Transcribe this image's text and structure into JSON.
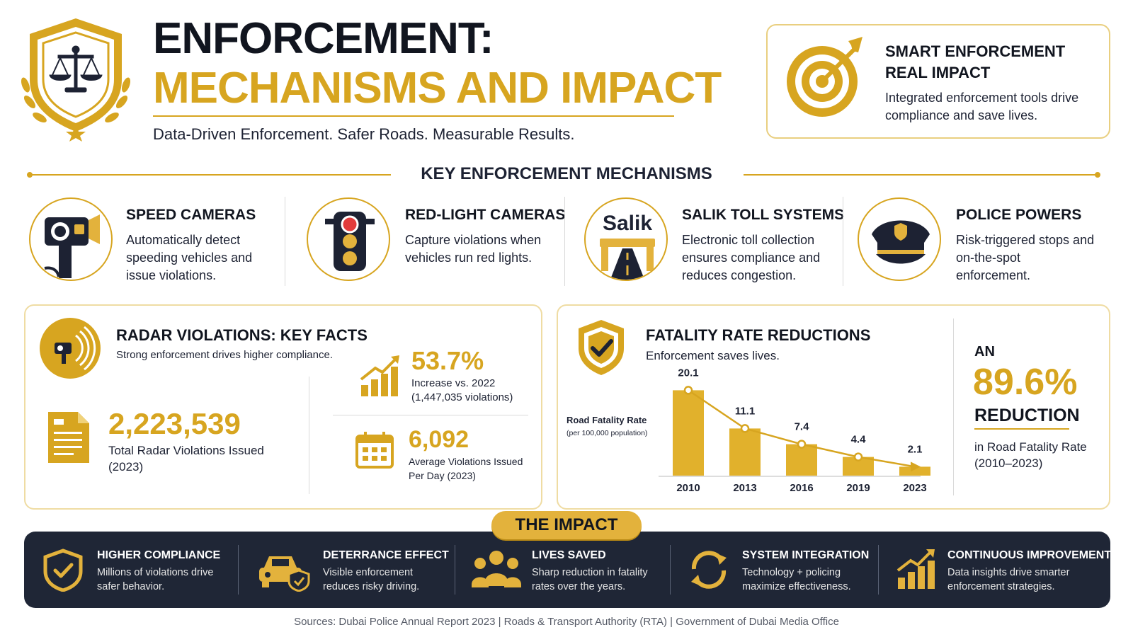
{
  "header": {
    "title_line1": "ENFORCEMENT:",
    "title_line2": "MECHANISMS AND IMPACT",
    "subtitle": "Data-Driven Enforcement. Safer Roads. Measurable Results.",
    "logo_icon": "scales-shield-icon"
  },
  "smart_box": {
    "title_line1": "SMART ENFORCEMENT",
    "title_line2": "REAL IMPACT",
    "description": "Integrated enforcement tools drive compliance and save lives.",
    "icon": "target-icon"
  },
  "mechanisms": {
    "heading": "KEY ENFORCEMENT MECHANISMS",
    "items": [
      {
        "title": "SPEED CAMERAS",
        "description": "Automatically detect speeding vehicles and issue violations.",
        "icon": "speed-camera-icon"
      },
      {
        "title": "RED-LIGHT CAMERAS",
        "description": "Capture violations when vehicles run red lights.",
        "icon": "traffic-light-icon"
      },
      {
        "title": "SALIK TOLL SYSTEMS",
        "description": "Electronic toll collection ensures compliance and reduces congestion.",
        "icon": "toll-gate-icon",
        "logo_text": "Salik"
      },
      {
        "title": "POLICE POWERS",
        "description": "Risk-triggered stops and on-the-spot enforcement.",
        "icon": "police-cap-icon"
      }
    ]
  },
  "radar": {
    "title": "RADAR VIOLATIONS: KEY FACTS",
    "subtitle": "Strong enforcement drives higher compliance.",
    "total_value": "2,223,539",
    "total_label": "Total Radar Violations Issued (2023)",
    "increase_value": "53.7%",
    "increase_label": "Increase vs. 2022 (1,447,035 violations)",
    "daily_value": "6,092",
    "daily_label": "Average Violations Issued Per Day (2023)"
  },
  "fatality": {
    "title": "FATALITY RATE REDUCTIONS",
    "subtitle": "Enforcement saves lives.",
    "axis_label": "Road Fatality Rate",
    "axis_sublabel": "(per 100,000 population)",
    "reduction_prefix": "AN",
    "reduction_value": "89.6%",
    "reduction_word": "REDUCTION",
    "reduction_label": "in Road Fatality Rate (2010–2023)"
  },
  "chart_data": {
    "type": "bar",
    "title": "",
    "xlabel": "",
    "ylabel": "Road Fatality Rate",
    "categories": [
      "2010",
      "2013",
      "2016",
      "2019",
      "2023"
    ],
    "values": [
      20.1,
      11.1,
      7.4,
      4.4,
      2.1
    ],
    "data_labels": [
      "20.1",
      "11.1",
      "7.4",
      "4.4",
      "2.1"
    ],
    "ylim": [
      0,
      22
    ],
    "trend_line": true,
    "grid": false,
    "bar_color": "#e1b12c",
    "line_color": "#d7a520"
  },
  "impact": {
    "badge": "THE IMPACT",
    "items": [
      {
        "title": "HIGHER COMPLIANCE",
        "description": "Millions of violations drive safer behavior.",
        "icon": "shield-check-icon"
      },
      {
        "title": "DETERRANCE EFFECT",
        "description": "Visible enforcement reduces risky driving.",
        "icon": "car-shield-icon"
      },
      {
        "title": "LIVES SAVED",
        "description": "Sharp reduction in fatality rates over the years.",
        "icon": "people-group-icon"
      },
      {
        "title": "SYSTEM INTEGRATION",
        "description": "Technology + policing maximize effectiveness.",
        "icon": "sync-arrows-icon"
      },
      {
        "title": "CONTINUOUS IMPROVEMENT",
        "description": "Data insights drive smarter enforcement strategies.",
        "icon": "growth-chart-icon"
      }
    ]
  },
  "sources": "Sources: Dubai Police Annual Report 2023  |  Roads & Transport Authority (RTA)  |  Government of Dubai Media Office",
  "colors": {
    "gold": "#d7a520",
    "navy": "#1f2636",
    "dark_text": "#11151f"
  }
}
